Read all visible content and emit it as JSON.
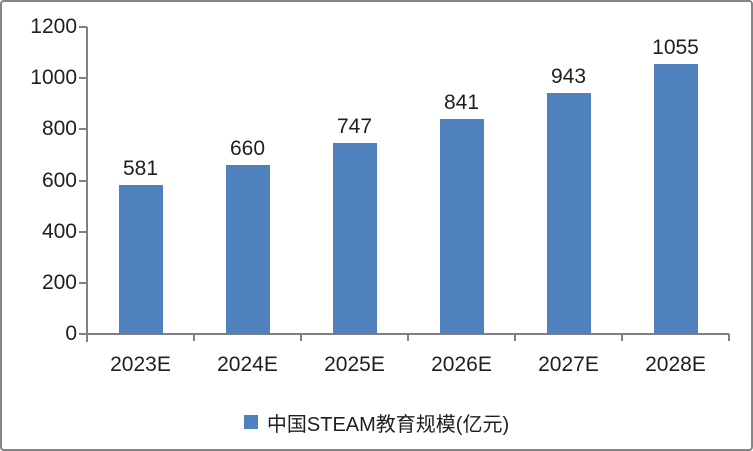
{
  "chart_data": {
    "type": "bar",
    "title": "",
    "categories": [
      "2023E",
      "2024E",
      "2025E",
      "2026E",
      "2027E",
      "2028E"
    ],
    "values": [
      581,
      660,
      747,
      841,
      943,
      1055
    ],
    "series_name": "中国STEAM教育规模(亿元)",
    "legend": "中国STEAM教育规模(亿元)",
    "legend_position": "bottom-center",
    "xlabel": "",
    "ylabel": "",
    "ylim": [
      0,
      1200
    ],
    "yticks": [
      0,
      200,
      400,
      600,
      800,
      1000,
      1200
    ],
    "grid": false,
    "bar_color": "#4F81BD",
    "axis_color": "#808080",
    "text_color": "#1F1F1F",
    "background_color": "#FFFFFF",
    "border_color": "#858585"
  }
}
